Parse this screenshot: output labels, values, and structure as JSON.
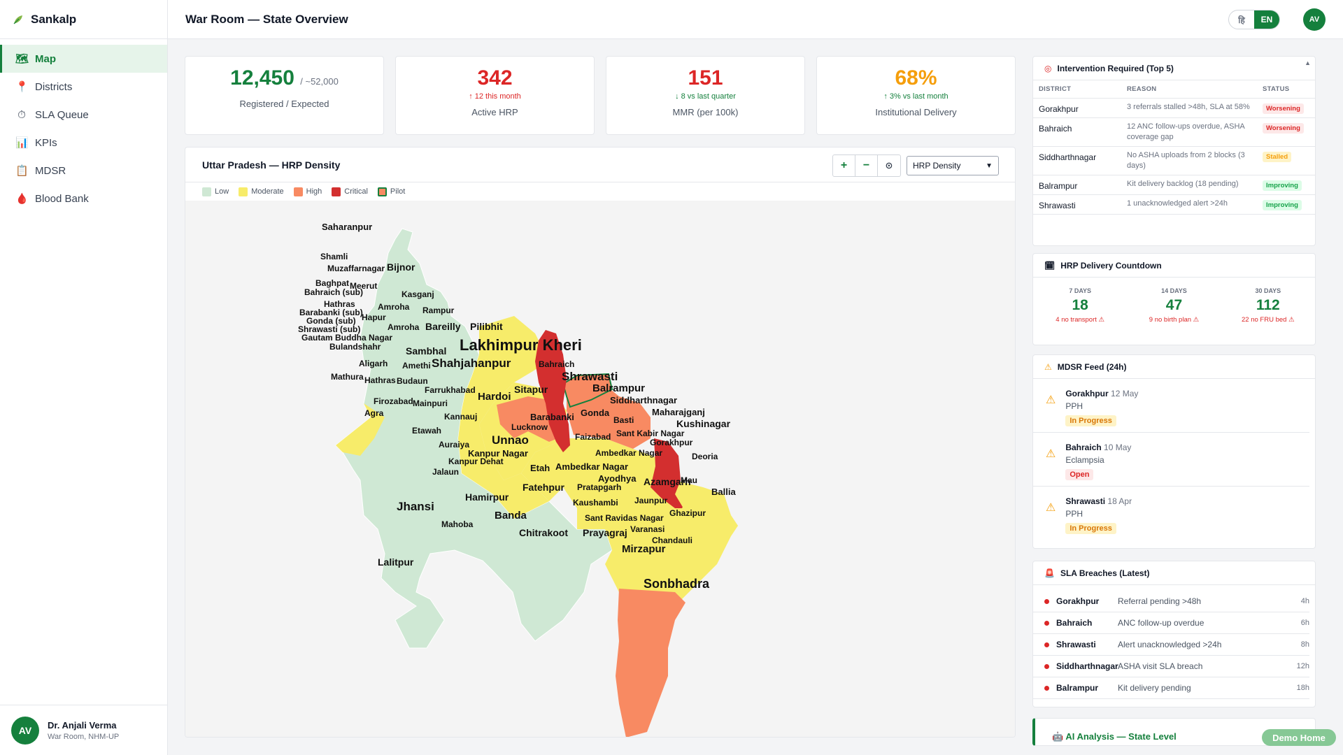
{
  "app": {
    "name": "Sankalp"
  },
  "sidebar": {
    "items": [
      {
        "label": "Map",
        "icon": "map-icon"
      },
      {
        "label": "Districts",
        "icon": "pin-icon"
      },
      {
        "label": "SLA Queue",
        "icon": "stopwatch-icon"
      },
      {
        "label": "KPIs",
        "icon": "bar-chart-icon"
      },
      {
        "label": "MDSR",
        "icon": "clipboard-icon"
      },
      {
        "label": "Blood Bank",
        "icon": "blood-drop-icon"
      }
    ],
    "user": {
      "initials": "AV",
      "name": "Dr. Anjali Verma",
      "role": "War Room, NHM-UP"
    }
  },
  "header": {
    "title": "War Room — State Overview",
    "lang_hi": "हि",
    "lang_en": "EN",
    "avatar": "AV"
  },
  "kpis": {
    "registered": {
      "value": "12,450",
      "expected": "/ ~52,000",
      "label": "Registered / Expected"
    },
    "hrp": {
      "value": "342",
      "trend": "↑ 12 this month",
      "label": "Active HRP"
    },
    "mmr": {
      "value": "151",
      "trend": "↓ 8 vs last quarter",
      "label": "MMR (per 100k)"
    },
    "institutional": {
      "value": "68%",
      "trend": "↑ 3% vs last month",
      "label": "Institutional Delivery"
    }
  },
  "map": {
    "title": "Uttar Pradesh — HRP Density",
    "zoom_in": "+",
    "zoom_out": "−",
    "reset": "⊙",
    "layer": "HRP Density",
    "legend": [
      {
        "label": "Low",
        "color": "#cfe8d4"
      },
      {
        "label": "Moderate",
        "color": "#f7ec6a"
      },
      {
        "label": "High",
        "color": "#f88a62"
      },
      {
        "label": "Critical",
        "color": "#d32f2f"
      },
      {
        "label": "Pilot",
        "color": "#f88a62"
      }
    ],
    "districts": [
      "Saharanpur",
      "Shamli",
      "Muzaffarnagar",
      "Bijnor",
      "Baghpat",
      "Meerut",
      "Bahraich (sub)",
      "Kasganj",
      "Hathras",
      "Amroha",
      "Rampur",
      "Barabanki (sub)",
      "Hapur",
      "Gonda (sub)",
      "Shrawasti (sub)",
      "Amroha",
      "Bareilly",
      "Pilibhit",
      "Gautam Buddha Nagar",
      "Bulandshahr",
      "Lakhimpur Kheri",
      "Sambhal",
      "Aligarh",
      "Amethi",
      "Shahjahanpur",
      "Bahraich",
      "Shrawasti",
      "Mathura",
      "Hathras",
      "Budaun",
      "Balrampur",
      "Farrukhabad",
      "Sitapur",
      "Firozabad",
      "Mainpuri",
      "Hardoi",
      "Siddharthnagar",
      "Maharajganj",
      "Agra",
      "Kannauj",
      "Barabanki",
      "Gonda",
      "Kushinagar",
      "Lucknow",
      "Basti",
      "Etawah",
      "Sant Kabir Nagar",
      "Faizabad",
      "Gorakhpur",
      "Auraiya",
      "Unnao",
      "Kanpur Nagar",
      "Ambedkar Nagar",
      "Deoria",
      "Kanpur Dehat",
      "Etah",
      "Ambedkar Nagar",
      "Jalaun",
      "Ayodhya",
      "Azamgarh",
      "Mau",
      "Ballia",
      "Fatehpur",
      "Pratapgarh",
      "Hamirpur",
      "Jhansi",
      "Jaunpur",
      "Kaushambi",
      "Ghazipur",
      "Mahoba",
      "Banda",
      "Sant Ravidas Nagar",
      "Varanasi",
      "Chitrakoot",
      "Prayagraj",
      "Chandauli",
      "Mirzapur",
      "Lalitpur",
      "Sonbhadra"
    ]
  },
  "intervention": {
    "title": "Intervention Required (Top 5)",
    "columns": [
      "DISTRICT",
      "REASON",
      "STATUS"
    ],
    "rows": [
      {
        "district": "Gorakhpur",
        "reason": "3 referrals stalled >48h, SLA at 58%",
        "status": "Worsening"
      },
      {
        "district": "Bahraich",
        "reason": "12 ANC follow-ups overdue, ASHA coverage gap",
        "status": "Worsening"
      },
      {
        "district": "Siddharthnagar",
        "reason": "No ASHA uploads from 2 blocks (3 days)",
        "status": "Stalled"
      },
      {
        "district": "Balrampur",
        "reason": "Kit delivery backlog (18 pending)",
        "status": "Improving"
      },
      {
        "district": "Shrawasti",
        "reason": "1 unacknowledged alert >24h",
        "status": "Improving"
      }
    ]
  },
  "countdown": {
    "title": "HRP Delivery Countdown",
    "items": [
      {
        "label": "7 DAYS",
        "value": "18",
        "note": "4 no transport ⚠"
      },
      {
        "label": "14 DAYS",
        "value": "47",
        "note": "9 no birth plan ⚠"
      },
      {
        "label": "30 DAYS",
        "value": "112",
        "note": "22 no FRU bed ⚠"
      }
    ]
  },
  "mdsr": {
    "title": "MDSR Feed (24h)",
    "items": [
      {
        "district": "Gorakhpur",
        "date": "12 May",
        "type": "PPH",
        "status": "In Progress"
      },
      {
        "district": "Bahraich",
        "date": "10 May",
        "type": "Eclampsia",
        "status": "Open"
      },
      {
        "district": "Shrawasti",
        "date": "18 Apr",
        "type": "PPH",
        "status": "In Progress"
      }
    ]
  },
  "sla": {
    "title": "SLA Breaches (Latest)",
    "items": [
      {
        "district": "Gorakhpur",
        "text": "Referral pending >48h",
        "age": "4h"
      },
      {
        "district": "Bahraich",
        "text": "ANC follow-up overdue",
        "age": "6h"
      },
      {
        "district": "Shrawasti",
        "text": "Alert unacknowledged >24h",
        "age": "8h"
      },
      {
        "district": "Siddharthnagar",
        "text": "ASHA visit SLA breach",
        "age": "12h"
      },
      {
        "district": "Balrampur",
        "text": "Kit delivery pending",
        "age": "18h"
      }
    ]
  },
  "ai": {
    "title": "AI Analysis — State Level"
  },
  "demo": {
    "label": "Demo Home"
  },
  "colors": {
    "accent": "#15803d",
    "danger": "#dc2626",
    "warning": "#f59e0b"
  }
}
